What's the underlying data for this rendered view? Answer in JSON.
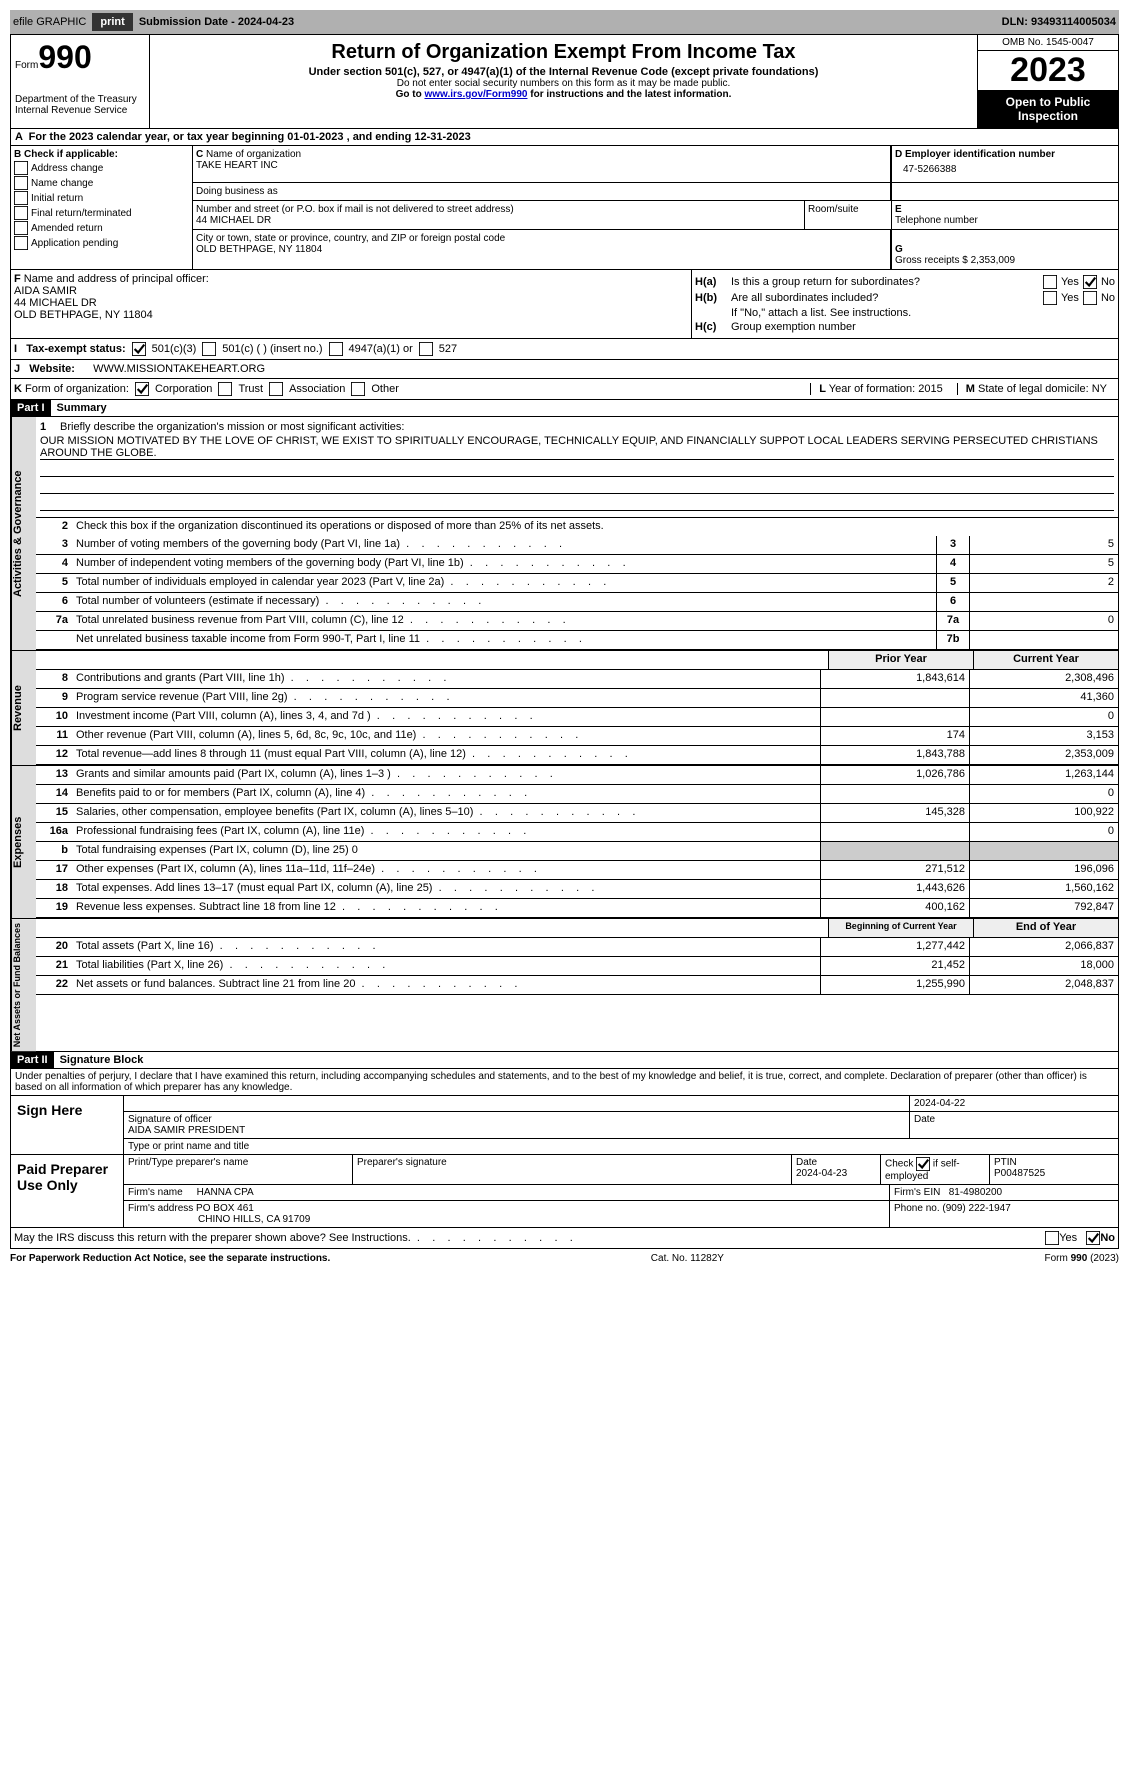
{
  "topbar": {
    "efile": "efile GRAPHIC",
    "print": "print",
    "submission": "Submission Date - 2024-04-23",
    "dln": "DLN: 93493114005034"
  },
  "header": {
    "formword": "Form",
    "formno": "990",
    "dept": "Department of the Treasury",
    "irs": "Internal Revenue Service",
    "title": "Return of Organization Exempt From Income Tax",
    "sub1": "Under section 501(c), 527, or 4947(a)(1) of the Internal Revenue Code (except private foundations)",
    "sub2": "Do not enter social security numbers on this form as it may be made public.",
    "sub3pre": "Go to ",
    "sub3link": "www.irs.gov/Form990",
    "sub3post": " for instructions and the latest information.",
    "omb": "OMB No. 1545-0047",
    "year": "2023",
    "openpub": "Open to Public Inspection"
  },
  "A": {
    "text": "For the 2023 calendar year, or tax year beginning 01-01-2023    , and ending 12-31-2023"
  },
  "B": {
    "label": "Check if applicable:",
    "opts": [
      "Address change",
      "Name change",
      "Initial return",
      "Final return/terminated",
      "Amended return",
      "Application pending"
    ]
  },
  "C": {
    "namelbl": "Name of organization",
    "name": "TAKE HEART INC",
    "dba": "Doing business as",
    "streetlbl": "Number and street (or P.O. box if mail is not delivered to street address)",
    "street": "44 MICHAEL DR",
    "roomlbl": "Room/suite",
    "citylbl": "City or town, state or province, country, and ZIP or foreign postal code",
    "city": "OLD BETHPAGE, NY  11804"
  },
  "D": {
    "lbl": "Employer identification number",
    "val": "47-5266388"
  },
  "E": {
    "lbl": "Telephone number"
  },
  "G": {
    "lbl": "Gross receipts $",
    "val": "2,353,009"
  },
  "F": {
    "lbl": "Name and address of principal officer:",
    "l1": "AIDA SAMIR",
    "l2": "44 MICHAEL DR",
    "l3": "OLD BETHPAGE, NY  11804"
  },
  "H": {
    "a": "Is this a group return for subordinates?",
    "b": "Are all subordinates included?",
    "bnote": "If \"No,\" attach a list. See instructions.",
    "c": "Group exemption number",
    "yes": "Yes",
    "no": "No"
  },
  "I": {
    "lbl": "Tax-exempt status:",
    "o1": "501(c)(3)",
    "o2": "501(c) (  ) (insert no.)",
    "o3": "4947(a)(1) or",
    "o4": "527"
  },
  "J": {
    "lbl": "Website:",
    "val": "WWW.MISSIONTAKEHEART.ORG"
  },
  "K": {
    "lbl": "Form of organization:",
    "o1": "Corporation",
    "o2": "Trust",
    "o3": "Association",
    "o4": "Other"
  },
  "L": {
    "lbl": "Year of formation:",
    "val": "2015"
  },
  "M": {
    "lbl": "State of legal domicile:",
    "val": "NY"
  },
  "part1": {
    "label": "Part I",
    "title": "Summary"
  },
  "governance": {
    "label": "Activities & Governance",
    "l1": "Briefly describe the organization's mission or most significant activities:",
    "mission": "OUR MISSION MOTIVATED BY THE LOVE OF CHRIST, WE EXIST TO SPIRITUALLY ENCOURAGE, TECHNICALLY EQUIP, AND FINANCIALLY SUPPOT LOCAL LEADERS SERVING PERSECUTED CHRISTIANS AROUND THE GLOBE.",
    "l2": "Check this box        if the organization discontinued its operations or disposed of more than 25% of its net assets.",
    "rows": [
      {
        "n": "3",
        "d": "Number of voting members of the governing body (Part VI, line 1a)",
        "b": "3",
        "v": "5"
      },
      {
        "n": "4",
        "d": "Number of independent voting members of the governing body (Part VI, line 1b)",
        "b": "4",
        "v": "5"
      },
      {
        "n": "5",
        "d": "Total number of individuals employed in calendar year 2023 (Part V, line 2a)",
        "b": "5",
        "v": "2"
      },
      {
        "n": "6",
        "d": "Total number of volunteers (estimate if necessary)",
        "b": "6",
        "v": ""
      },
      {
        "n": "7a",
        "d": "Total unrelated business revenue from Part VIII, column (C), line 12",
        "b": "7a",
        "v": "0"
      },
      {
        "n": "",
        "d": "Net unrelated business taxable income from Form 990-T, Part I, line 11",
        "b": "7b",
        "v": ""
      }
    ]
  },
  "revenue": {
    "label": "Revenue",
    "hprior": "Prior Year",
    "hcur": "Current Year",
    "rows": [
      {
        "n": "8",
        "d": "Contributions and grants (Part VIII, line 1h)",
        "p": "1,843,614",
        "c": "2,308,496"
      },
      {
        "n": "9",
        "d": "Program service revenue (Part VIII, line 2g)",
        "p": "",
        "c": "41,360"
      },
      {
        "n": "10",
        "d": "Investment income (Part VIII, column (A), lines 3, 4, and 7d )",
        "p": "",
        "c": "0"
      },
      {
        "n": "11",
        "d": "Other revenue (Part VIII, column (A), lines 5, 6d, 8c, 9c, 10c, and 11e)",
        "p": "174",
        "c": "3,153"
      },
      {
        "n": "12",
        "d": "Total revenue—add lines 8 through 11 (must equal Part VIII, column (A), line 12)",
        "p": "1,843,788",
        "c": "2,353,009"
      }
    ]
  },
  "expenses": {
    "label": "Expenses",
    "rows": [
      {
        "n": "13",
        "d": "Grants and similar amounts paid (Part IX, column (A), lines 1–3 )",
        "p": "1,026,786",
        "c": "1,263,144"
      },
      {
        "n": "14",
        "d": "Benefits paid to or for members (Part IX, column (A), line 4)",
        "p": "",
        "c": "0"
      },
      {
        "n": "15",
        "d": "Salaries, other compensation, employee benefits (Part IX, column (A), lines 5–10)",
        "p": "145,328",
        "c": "100,922"
      },
      {
        "n": "16a",
        "d": "Professional fundraising fees (Part IX, column (A), line 11e)",
        "p": "",
        "c": "0"
      },
      {
        "n": "b",
        "d": "Total fundraising expenses (Part IX, column (D), line 25) 0",
        "grey": true
      },
      {
        "n": "17",
        "d": "Other expenses (Part IX, column (A), lines 11a–11d, 11f–24e)",
        "p": "271,512",
        "c": "196,096"
      },
      {
        "n": "18",
        "d": "Total expenses. Add lines 13–17 (must equal Part IX, column (A), line 25)",
        "p": "1,443,626",
        "c": "1,560,162"
      },
      {
        "n": "19",
        "d": "Revenue less expenses. Subtract line 18 from line 12",
        "p": "400,162",
        "c": "792,847"
      }
    ]
  },
  "netassets": {
    "label": "Net Assets or Fund Balances",
    "hprior": "Beginning of Current Year",
    "hcur": "End of Year",
    "rows": [
      {
        "n": "20",
        "d": "Total assets (Part X, line 16)",
        "p": "1,277,442",
        "c": "2,066,837"
      },
      {
        "n": "21",
        "d": "Total liabilities (Part X, line 26)",
        "p": "21,452",
        "c": "18,000"
      },
      {
        "n": "22",
        "d": "Net assets or fund balances. Subtract line 21 from line 20",
        "p": "1,255,990",
        "c": "2,048,837"
      }
    ]
  },
  "part2": {
    "label": "Part II",
    "title": "Signature Block",
    "decl": "Under penalties of perjury, I declare that I have examined this return, including accompanying schedules and statements, and to the best of my knowledge and belief, it is true, correct, and complete. Declaration of preparer (other than officer) is based on all information of which preparer has any knowledge."
  },
  "sign": {
    "here": "Sign Here",
    "siglbl": "Signature of officer",
    "name": "AIDA SAMIR PRESIDENT",
    "typelbl": "Type or print name and title",
    "date": "2024-04-22",
    "datelbl": "Date"
  },
  "paid": {
    "lbl": "Paid Preparer Use Only",
    "pname": "Print/Type preparer's name",
    "psig": "Preparer's signature",
    "pdate": "Date",
    "pdateval": "2024-04-23",
    "check": "Check",
    "checkif": "if self-employed",
    "ptin": "PTIN",
    "ptinval": "P00487525",
    "firmname": "Firm's name",
    "firmval": "HANNA CPA",
    "firmein": "Firm's EIN",
    "firmeinval": "81-4980200",
    "firmaddr": "Firm's address",
    "addrval": "PO BOX 461",
    "addrval2": "CHINO HILLS, CA  91709",
    "phone": "Phone no.",
    "phoneval": "(909) 222-1947"
  },
  "mayirs": {
    "q": "May the IRS discuss this return with the preparer shown above? See Instructions.",
    "yes": "Yes",
    "no": "No"
  },
  "footer": {
    "l": "For Paperwork Reduction Act Notice, see the separate instructions.",
    "m": "Cat. No. 11282Y",
    "r": "Form 990 (2023)"
  }
}
